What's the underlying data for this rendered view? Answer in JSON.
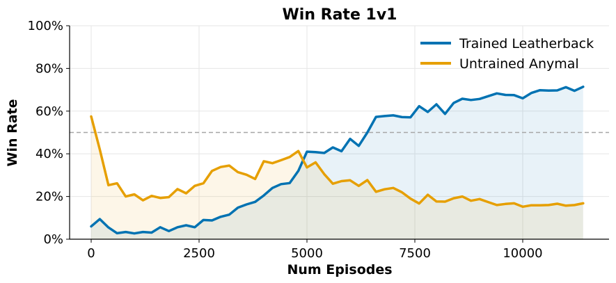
{
  "chart_data": {
    "type": "line",
    "title": "Win Rate 1v1",
    "xlabel": "Num Episodes",
    "ylabel": "Win Rate",
    "xlim": [
      -500,
      12000
    ],
    "ylim": [
      0,
      1
    ],
    "xticks": [
      0,
      2500,
      5000,
      7500,
      10000
    ],
    "xtick_labels": [
      "0",
      "2500",
      "5000",
      "7500",
      "10000"
    ],
    "yticks": [
      0,
      0.2,
      0.4,
      0.6,
      0.8,
      1.0
    ],
    "ytick_labels": [
      "0%",
      "20%",
      "40%",
      "60%",
      "80%",
      "100%"
    ],
    "grid": true,
    "reference_line": 0.5,
    "legend_position": "top-right",
    "x": [
      0,
      200,
      400,
      600,
      800,
      1000,
      1200,
      1400,
      1600,
      1800,
      2000,
      2200,
      2400,
      2600,
      2800,
      3000,
      3200,
      3400,
      3600,
      3800,
      4000,
      4200,
      4400,
      4600,
      4800,
      5000,
      5200,
      5400,
      5600,
      5800,
      6000,
      6200,
      6400,
      6600,
      6800,
      7000,
      7200,
      7400,
      7600,
      7800,
      8000,
      8200,
      8400,
      8600,
      8800,
      9000,
      9200,
      9400,
      9600,
      9800,
      10000,
      10200,
      10400,
      10600,
      10800,
      11000,
      11200,
      11400
    ],
    "series": [
      {
        "name": "Trained Leatherback",
        "color": "#0072b2",
        "values": [
          0.06,
          0.094,
          0.055,
          0.028,
          0.034,
          0.027,
          0.034,
          0.031,
          0.056,
          0.038,
          0.056,
          0.065,
          0.056,
          0.09,
          0.088,
          0.105,
          0.115,
          0.148,
          0.163,
          0.175,
          0.205,
          0.24,
          0.258,
          0.263,
          0.32,
          0.41,
          0.408,
          0.404,
          0.43,
          0.412,
          0.47,
          0.437,
          0.5,
          0.573,
          0.577,
          0.58,
          0.572,
          0.571,
          0.623,
          0.596,
          0.632,
          0.587,
          0.638,
          0.658,
          0.652,
          0.657,
          0.67,
          0.683,
          0.676,
          0.675,
          0.66,
          0.685,
          0.698,
          0.696,
          0.697,
          0.712,
          0.695,
          0.714
        ]
      },
      {
        "name": "Untrained Anymal",
        "color": "#e69f00",
        "values": [
          0.575,
          0.42,
          0.253,
          0.262,
          0.2,
          0.21,
          0.182,
          0.203,
          0.193,
          0.197,
          0.235,
          0.215,
          0.25,
          0.262,
          0.32,
          0.338,
          0.345,
          0.314,
          0.302,
          0.282,
          0.365,
          0.356,
          0.37,
          0.385,
          0.413,
          0.336,
          0.36,
          0.305,
          0.26,
          0.272,
          0.276,
          0.25,
          0.277,
          0.222,
          0.234,
          0.24,
          0.22,
          0.19,
          0.167,
          0.208,
          0.177,
          0.176,
          0.192,
          0.2,
          0.18,
          0.188,
          0.174,
          0.16,
          0.165,
          0.168,
          0.152,
          0.159,
          0.159,
          0.16,
          0.166,
          0.157,
          0.16,
          0.168
        ]
      }
    ]
  }
}
